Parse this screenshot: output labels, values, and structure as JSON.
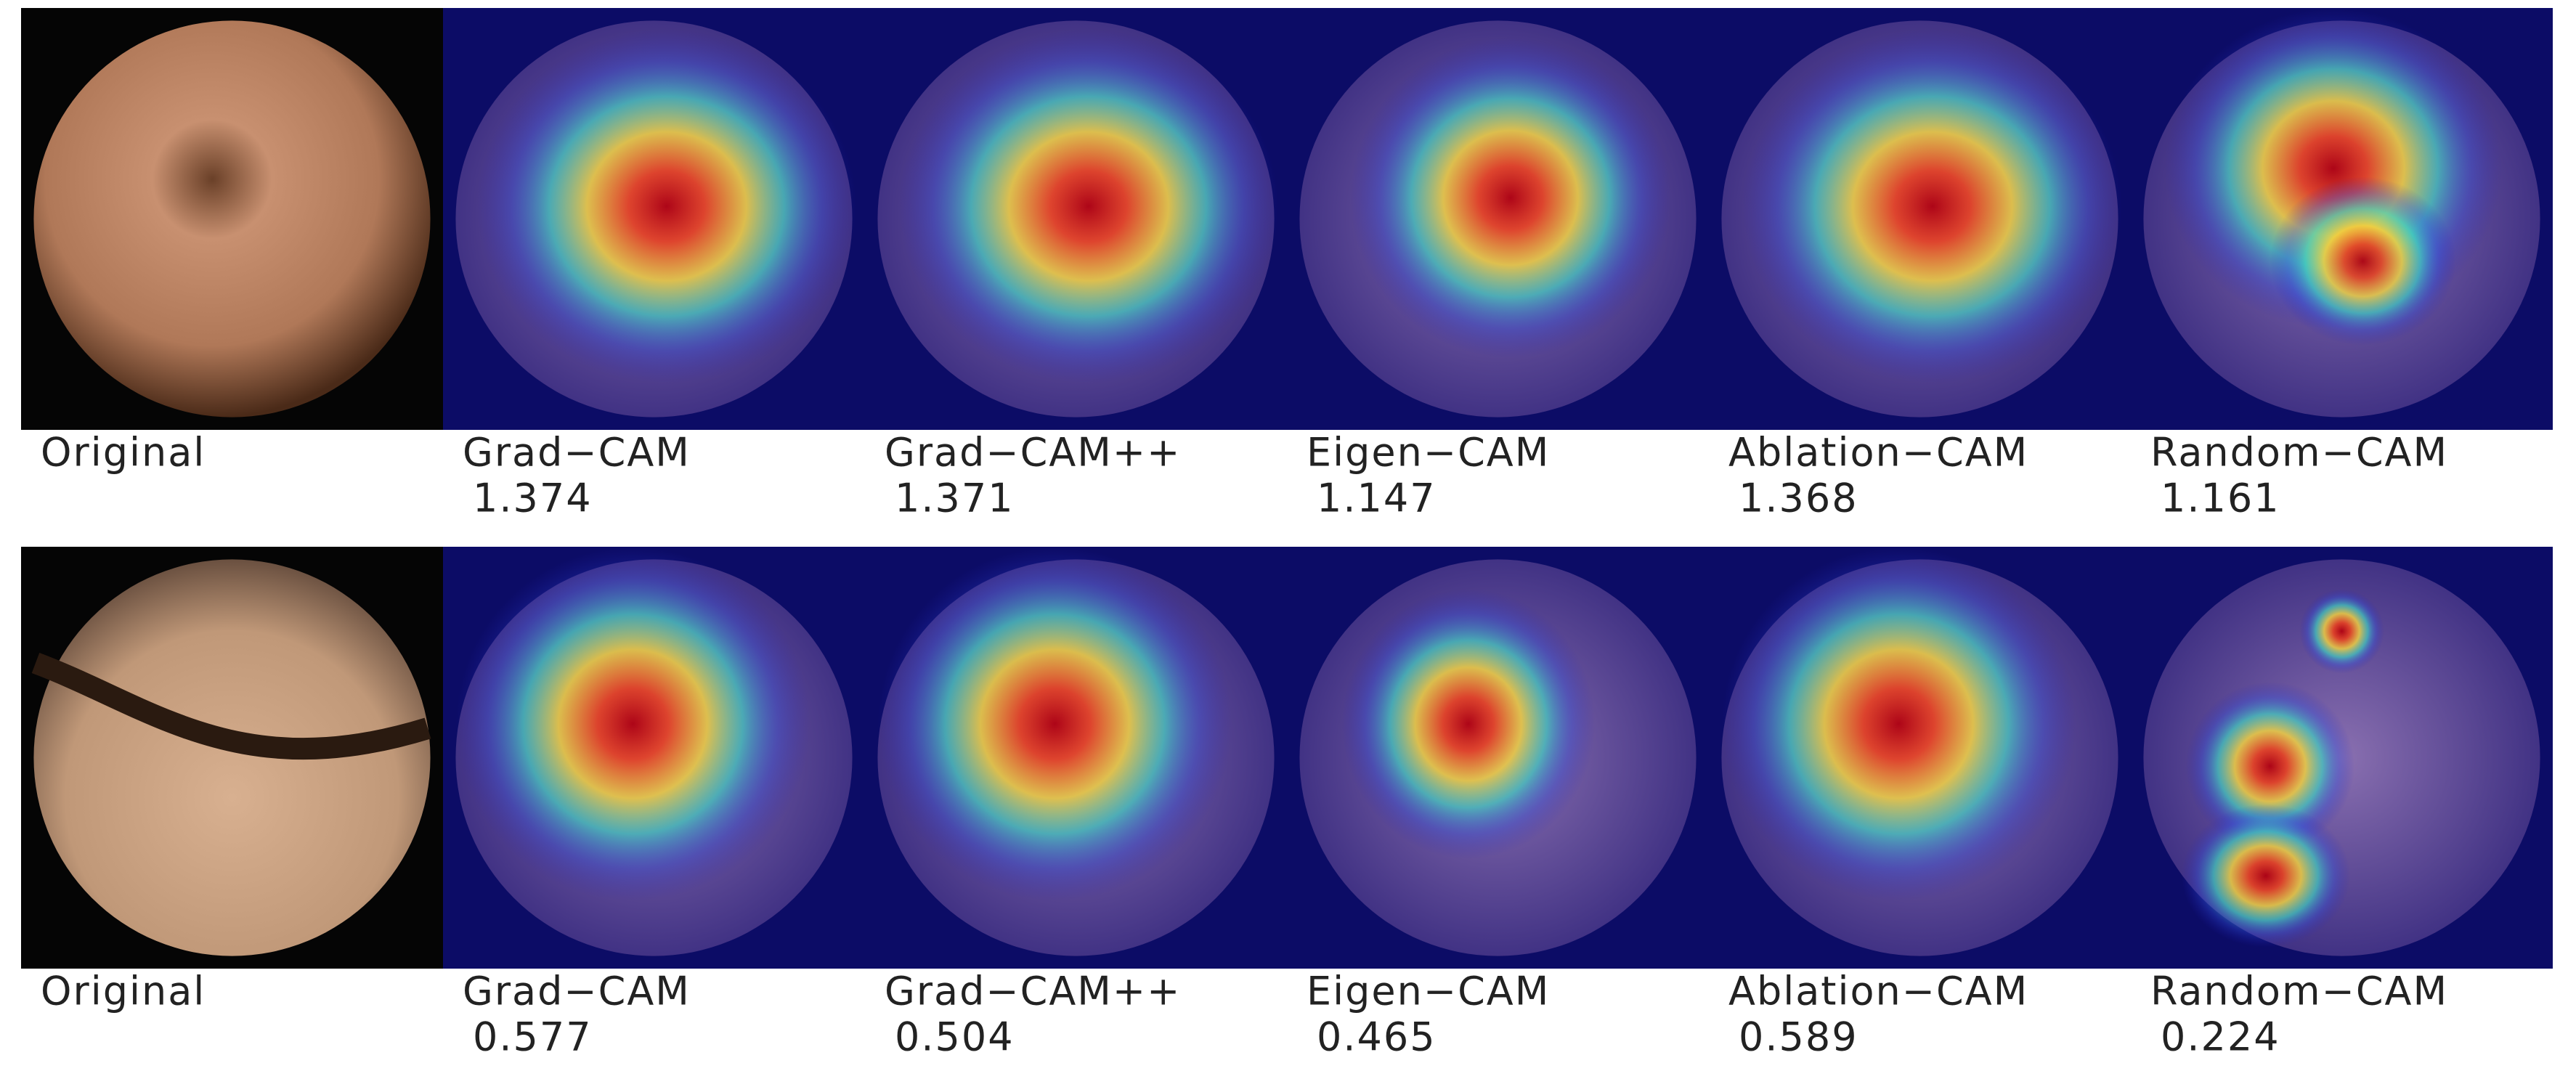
{
  "rows": [
    {
      "panels": [
        {
          "label": "Original"
        },
        {
          "label": "Grad−CAM",
          "score": 1.374
        },
        {
          "label": "Grad−CAM++",
          "score": 1.371
        },
        {
          "label": "Eigen−CAM",
          "score": 1.147
        },
        {
          "label": "Ablation−CAM",
          "score": 1.368
        },
        {
          "label": "Random−CAM",
          "score": 1.161
        }
      ]
    },
    {
      "panels": [
        {
          "label": "Original"
        },
        {
          "label": "Grad−CAM",
          "score": 0.577
        },
        {
          "label": "Grad−CAM++",
          "score": 0.504
        },
        {
          "label": "Eigen−CAM",
          "score": 0.465
        },
        {
          "label": "Ablation−CAM",
          "score": 0.589
        },
        {
          "label": "Random−CAM",
          "score": 0.224
        }
      ]
    }
  ]
}
